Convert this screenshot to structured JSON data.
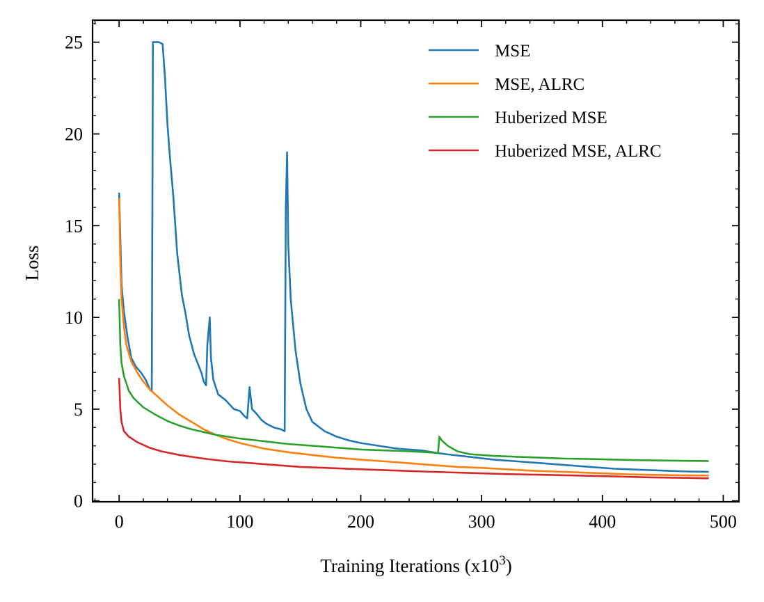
{
  "chart_data": {
    "type": "line",
    "xlabel": "Training Iterations (x10",
    "xlabel_sup": "3",
    "xlabel_end": ")",
    "ylabel": "Loss",
    "xlim": [
      -22,
      513
    ],
    "ylim": [
      -0.05,
      26.2
    ],
    "xticks": [
      0,
      100,
      200,
      300,
      400,
      500
    ],
    "xtick_labels": [
      "0",
      "100",
      "200",
      "300",
      "400",
      "500"
    ],
    "yticks": [
      0,
      5,
      10,
      15,
      20,
      25
    ],
    "ytick_labels": [
      "0",
      "5",
      "10",
      "15",
      "20",
      "25"
    ],
    "legend_position": "top-right",
    "grid": false,
    "series": [
      {
        "name": "MSE",
        "color": "#1f77b4",
        "points": [
          [
            0,
            16.8
          ],
          [
            2,
            11.8
          ],
          [
            4,
            10.3
          ],
          [
            7,
            8.9
          ],
          [
            10,
            7.8
          ],
          [
            14,
            7.3
          ],
          [
            18,
            7.0
          ],
          [
            22,
            6.6
          ],
          [
            26,
            6.0
          ],
          [
            27,
            6.0
          ],
          [
            28,
            25.0
          ],
          [
            30,
            25.0
          ],
          [
            33,
            25.0
          ],
          [
            36,
            24.9
          ],
          [
            38,
            23.0
          ],
          [
            40,
            20.5
          ],
          [
            42,
            18.8
          ],
          [
            45,
            16.5
          ],
          [
            48,
            13.5
          ],
          [
            52,
            11.2
          ],
          [
            55,
            10.2
          ],
          [
            58,
            9.0
          ],
          [
            62,
            8.0
          ],
          [
            65,
            7.5
          ],
          [
            68,
            7.0
          ],
          [
            70,
            6.5
          ],
          [
            72,
            6.3
          ],
          [
            73,
            8.5
          ],
          [
            75,
            10.0
          ],
          [
            76,
            7.8
          ],
          [
            78,
            6.6
          ],
          [
            82,
            5.8
          ],
          [
            88,
            5.5
          ],
          [
            95,
            5.0
          ],
          [
            100,
            4.9
          ],
          [
            104,
            4.6
          ],
          [
            106,
            4.5
          ],
          [
            108,
            6.2
          ],
          [
            110,
            5.0
          ],
          [
            113,
            4.8
          ],
          [
            118,
            4.4
          ],
          [
            122,
            4.2
          ],
          [
            128,
            4.0
          ],
          [
            134,
            3.9
          ],
          [
            137,
            3.8
          ],
          [
            138,
            16.0
          ],
          [
            139,
            19.0
          ],
          [
            140,
            14.0
          ],
          [
            142,
            11.0
          ],
          [
            146,
            8.2
          ],
          [
            150,
            6.4
          ],
          [
            155,
            5.0
          ],
          [
            160,
            4.3
          ],
          [
            170,
            3.8
          ],
          [
            180,
            3.5
          ],
          [
            190,
            3.3
          ],
          [
            200,
            3.15
          ],
          [
            215,
            3.0
          ],
          [
            230,
            2.85
          ],
          [
            250,
            2.75
          ],
          [
            270,
            2.55
          ],
          [
            290,
            2.4
          ],
          [
            310,
            2.25
          ],
          [
            330,
            2.15
          ],
          [
            350,
            2.05
          ],
          [
            370,
            1.95
          ],
          [
            390,
            1.85
          ],
          [
            410,
            1.75
          ],
          [
            430,
            1.7
          ],
          [
            450,
            1.65
          ],
          [
            470,
            1.6
          ],
          [
            488,
            1.58
          ]
        ]
      },
      {
        "name": "MSE, ALRC",
        "color": "#ff7f0e",
        "points": [
          [
            0,
            16.5
          ],
          [
            1,
            13.0
          ],
          [
            2,
            11.0
          ],
          [
            4,
            9.5
          ],
          [
            6,
            8.5
          ],
          [
            10,
            7.6
          ],
          [
            15,
            7.0
          ],
          [
            20,
            6.5
          ],
          [
            25,
            6.1
          ],
          [
            30,
            5.8
          ],
          [
            40,
            5.2
          ],
          [
            50,
            4.7
          ],
          [
            60,
            4.3
          ],
          [
            70,
            3.9
          ],
          [
            80,
            3.6
          ],
          [
            90,
            3.35
          ],
          [
            100,
            3.15
          ],
          [
            110,
            3.0
          ],
          [
            120,
            2.85
          ],
          [
            140,
            2.65
          ],
          [
            160,
            2.5
          ],
          [
            180,
            2.35
          ],
          [
            200,
            2.25
          ],
          [
            220,
            2.15
          ],
          [
            240,
            2.05
          ],
          [
            260,
            1.95
          ],
          [
            280,
            1.85
          ],
          [
            300,
            1.8
          ],
          [
            320,
            1.72
          ],
          [
            340,
            1.65
          ],
          [
            360,
            1.6
          ],
          [
            380,
            1.55
          ],
          [
            400,
            1.5
          ],
          [
            420,
            1.45
          ],
          [
            440,
            1.42
          ],
          [
            460,
            1.4
          ],
          [
            488,
            1.38
          ]
        ]
      },
      {
        "name": "Huberized MSE",
        "color": "#2ca02c",
        "points": [
          [
            0,
            11.0
          ],
          [
            1,
            8.5
          ],
          [
            2,
            7.5
          ],
          [
            4,
            6.8
          ],
          [
            8,
            6.0
          ],
          [
            12,
            5.6
          ],
          [
            20,
            5.1
          ],
          [
            30,
            4.7
          ],
          [
            40,
            4.35
          ],
          [
            50,
            4.1
          ],
          [
            60,
            3.9
          ],
          [
            80,
            3.6
          ],
          [
            100,
            3.4
          ],
          [
            120,
            3.25
          ],
          [
            140,
            3.1
          ],
          [
            160,
            3.0
          ],
          [
            180,
            2.9
          ],
          [
            200,
            2.8
          ],
          [
            220,
            2.75
          ],
          [
            240,
            2.7
          ],
          [
            255,
            2.65
          ],
          [
            264,
            2.6
          ],
          [
            265,
            3.5
          ],
          [
            267,
            3.3
          ],
          [
            272,
            3.0
          ],
          [
            280,
            2.7
          ],
          [
            290,
            2.55
          ],
          [
            310,
            2.45
          ],
          [
            330,
            2.4
          ],
          [
            350,
            2.35
          ],
          [
            370,
            2.3
          ],
          [
            390,
            2.28
          ],
          [
            410,
            2.25
          ],
          [
            430,
            2.22
          ],
          [
            450,
            2.2
          ],
          [
            470,
            2.18
          ],
          [
            488,
            2.17
          ]
        ]
      },
      {
        "name": "Huberized MSE, ALRC",
        "color": "#d62728",
        "points": [
          [
            0,
            6.7
          ],
          [
            1,
            5.0
          ],
          [
            2,
            4.3
          ],
          [
            4,
            3.8
          ],
          [
            8,
            3.5
          ],
          [
            15,
            3.2
          ],
          [
            25,
            2.9
          ],
          [
            35,
            2.7
          ],
          [
            50,
            2.5
          ],
          [
            70,
            2.3
          ],
          [
            90,
            2.15
          ],
          [
            110,
            2.05
          ],
          [
            130,
            1.95
          ],
          [
            150,
            1.85
          ],
          [
            170,
            1.8
          ],
          [
            200,
            1.72
          ],
          [
            230,
            1.65
          ],
          [
            260,
            1.58
          ],
          [
            290,
            1.52
          ],
          [
            320,
            1.46
          ],
          [
            350,
            1.42
          ],
          [
            380,
            1.38
          ],
          [
            410,
            1.33
          ],
          [
            440,
            1.28
          ],
          [
            470,
            1.25
          ],
          [
            488,
            1.23
          ]
        ]
      }
    ]
  }
}
